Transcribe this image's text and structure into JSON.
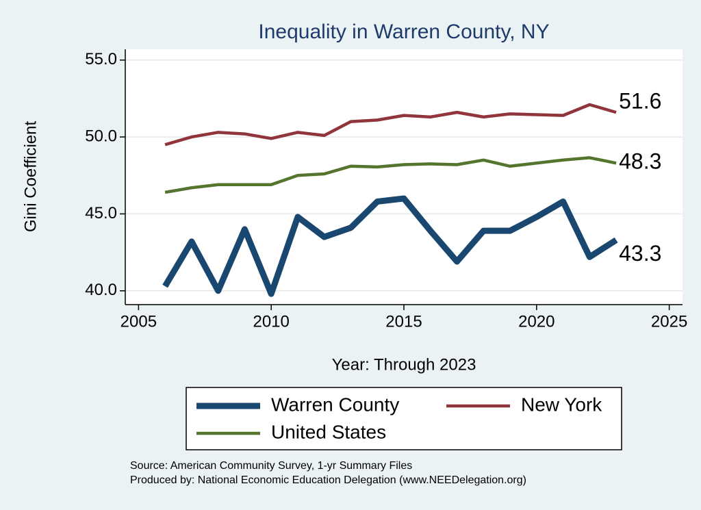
{
  "chart_data": {
    "type": "line",
    "title": "Inequality in Warren County, NY",
    "x_label": "Year: Through 2023",
    "y_label": "Gini Coefficient",
    "notes": [
      "Source: American Community Survey, 1-yr Summary Files",
      "Produced by: National Economic Education Delegation (www.NEEDelegation.org)"
    ],
    "x": [
      2006,
      2007,
      2008,
      2009,
      2010,
      2011,
      2012,
      2013,
      2014,
      2015,
      2016,
      2017,
      2018,
      2019,
      2020,
      2021,
      2022,
      2023
    ],
    "series": [
      {
        "name": "Warren County",
        "color": "#1a476f",
        "values": [
          40.3,
          43.2,
          40.0,
          44.0,
          39.8,
          44.8,
          43.5,
          44.1,
          45.8,
          46.0,
          43.9,
          41.9,
          43.9,
          43.9,
          44.8,
          45.8,
          42.2,
          43.3
        ]
      },
      {
        "name": "New York",
        "color": "#90353b",
        "values": [
          49.5,
          50.0,
          50.3,
          50.2,
          49.9,
          50.3,
          50.1,
          51.0,
          51.1,
          51.4,
          51.3,
          51.6,
          51.3,
          51.5,
          51.45,
          51.4,
          52.1,
          51.6
        ]
      },
      {
        "name": "United States",
        "color": "#55752f",
        "values": [
          46.4,
          46.7,
          46.9,
          46.9,
          46.9,
          47.5,
          47.6,
          48.1,
          48.05,
          48.2,
          48.25,
          48.2,
          48.5,
          48.1,
          48.3,
          48.5,
          48.65,
          48.3
        ]
      }
    ],
    "xlim": [
      2004.5,
      2025.5
    ],
    "xticks": [
      2005,
      2010,
      2015,
      2020,
      2025
    ],
    "ylim": [
      39.1,
      55.7
    ],
    "yticks": [
      {
        "value": 40,
        "label": "40.0"
      },
      {
        "value": 45,
        "label": "45.0"
      },
      {
        "value": 50,
        "label": "50.0"
      },
      {
        "value": 55,
        "label": "55.0"
      }
    ],
    "grid": true
  }
}
